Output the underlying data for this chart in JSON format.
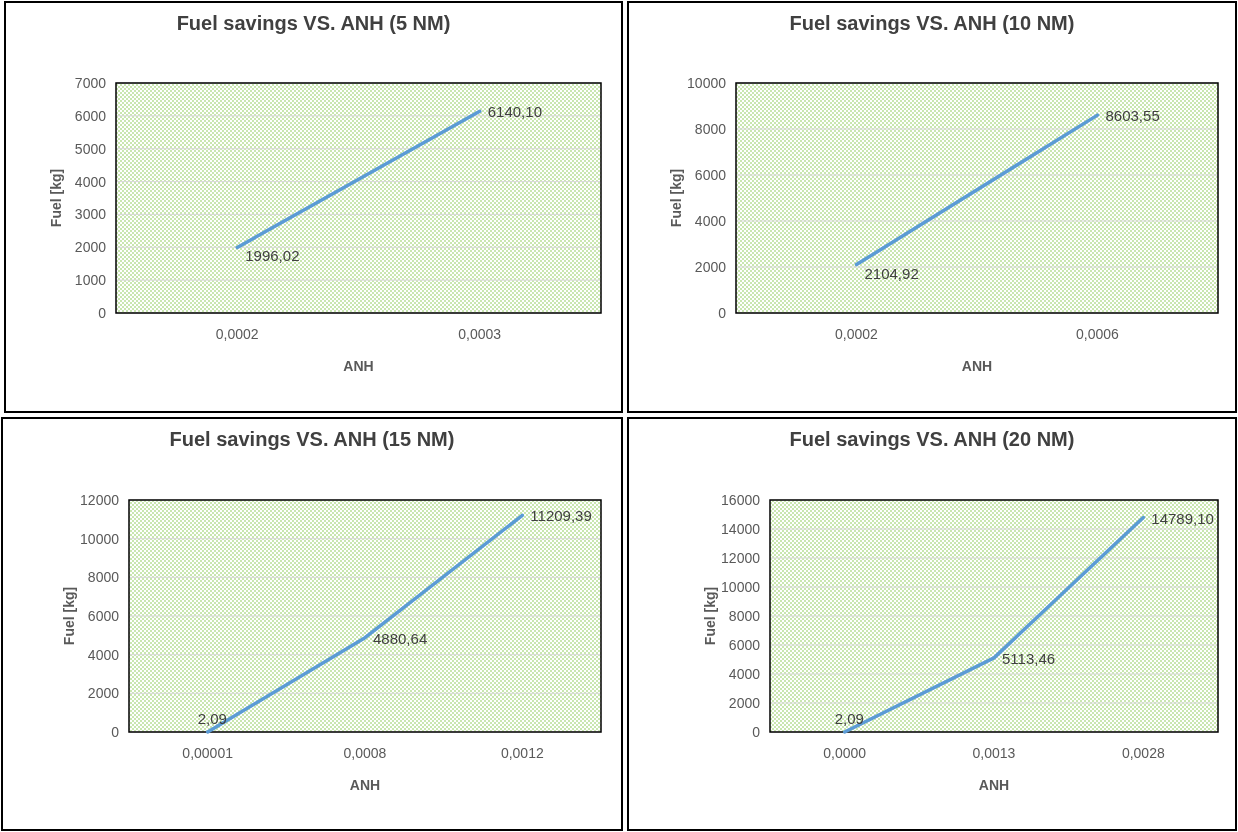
{
  "chart_data": [
    {
      "type": "line",
      "title": "Fuel savings VS. ANH  (5 NM)",
      "xlabel": "ANH",
      "ylabel": "Fuel [kg]",
      "categories": [
        "0,0002",
        "0,0003"
      ],
      "series": [
        {
          "color": "#5b9bd5",
          "values": [
            1996.02,
            6140.1
          ],
          "value_labels": [
            "1996,02",
            "6140,10"
          ]
        }
      ],
      "ylim": [
        0,
        7000
      ],
      "yticks": [
        0,
        1000,
        2000,
        3000,
        4000,
        5000,
        6000,
        7000
      ],
      "grid": "y"
    },
    {
      "type": "line",
      "title": "Fuel savings VS. ANH (10 NM)",
      "xlabel": "ANH",
      "ylabel": "Fuel [kg]",
      "categories": [
        "0,0002",
        "0,0006"
      ],
      "series": [
        {
          "color": "#5b9bd5",
          "values": [
            2104.92,
            8603.55
          ],
          "value_labels": [
            "2104,92",
            "8603,55"
          ]
        }
      ],
      "ylim": [
        0,
        10000
      ],
      "yticks": [
        0,
        2000,
        4000,
        6000,
        8000,
        10000
      ],
      "grid": "y"
    },
    {
      "type": "line",
      "title": "Fuel savings VS. ANH (15 NM)",
      "xlabel": "ANH",
      "ylabel": "Fuel [kg]",
      "categories": [
        "0,00001",
        "0,0008",
        "0,0012"
      ],
      "series": [
        {
          "color": "#5b9bd5",
          "values": [
            2.09,
            4880.64,
            11209.39
          ],
          "value_labels": [
            "2,09",
            "4880,64",
            "11209,39"
          ]
        }
      ],
      "ylim": [
        0,
        12000
      ],
      "yticks": [
        0,
        2000,
        4000,
        6000,
        8000,
        10000,
        12000
      ],
      "grid": "y"
    },
    {
      "type": "line",
      "title": "Fuel savings VS. ANH (20 NM)",
      "xlabel": "ANH",
      "ylabel": "Fuel [kg]",
      "categories": [
        "0,0000",
        "0,0013",
        "0,0028"
      ],
      "series": [
        {
          "color": "#5b9bd5",
          "values": [
            2.09,
            5113.46,
            14789.1
          ],
          "value_labels": [
            "2,09",
            "5113,46",
            "14789,10"
          ]
        }
      ],
      "ylim": [
        0,
        16000
      ],
      "yticks": [
        0,
        2000,
        4000,
        6000,
        8000,
        10000,
        12000,
        14000,
        16000
      ],
      "grid": "y"
    }
  ]
}
